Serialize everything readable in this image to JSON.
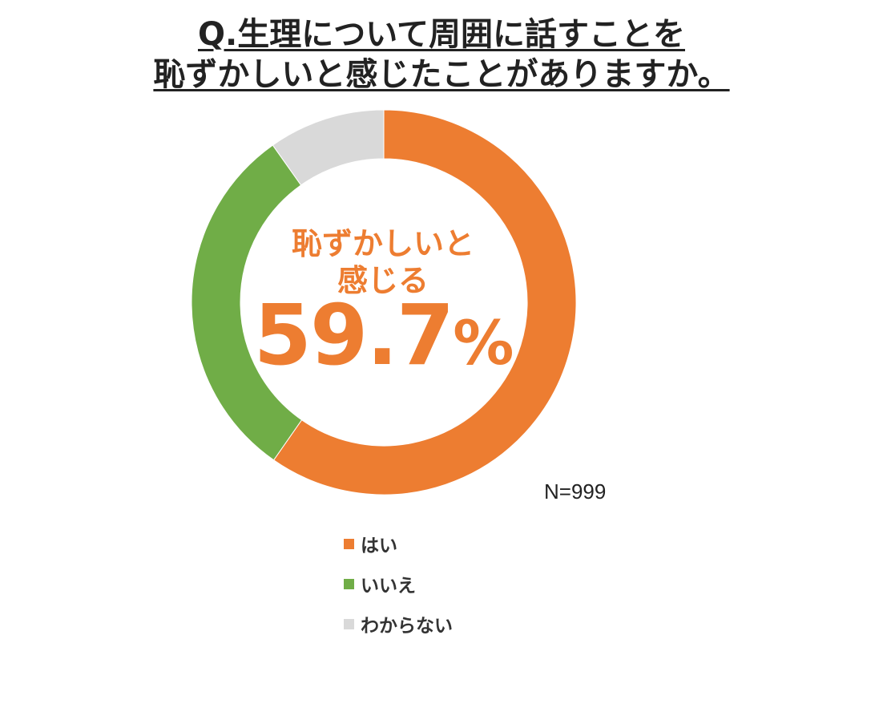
{
  "title": {
    "line1": "Q.生理について周囲に話すことを",
    "line2": "恥ずかしいと感じたことがありますか。"
  },
  "center": {
    "label_line1": "恥ずかしいと",
    "label_line2": "感じる",
    "value": "59.7",
    "unit": "%"
  },
  "sample_size": "N=999",
  "chart_data": {
    "type": "pie",
    "variant": "donut",
    "title": "Q.生理について周囲に話すことを恥ずかしいと感じたことがありますか。",
    "categories": [
      "はい",
      "いいえ",
      "わからない"
    ],
    "values": [
      59.7,
      30.5,
      9.8
    ],
    "unit": "%",
    "colors": [
      "#ED7D31",
      "#70AD47",
      "#D9D9D9"
    ],
    "start_angle": "12 o'clock",
    "direction": "clockwise",
    "legend": "bottom",
    "annotation": "N=999"
  }
}
